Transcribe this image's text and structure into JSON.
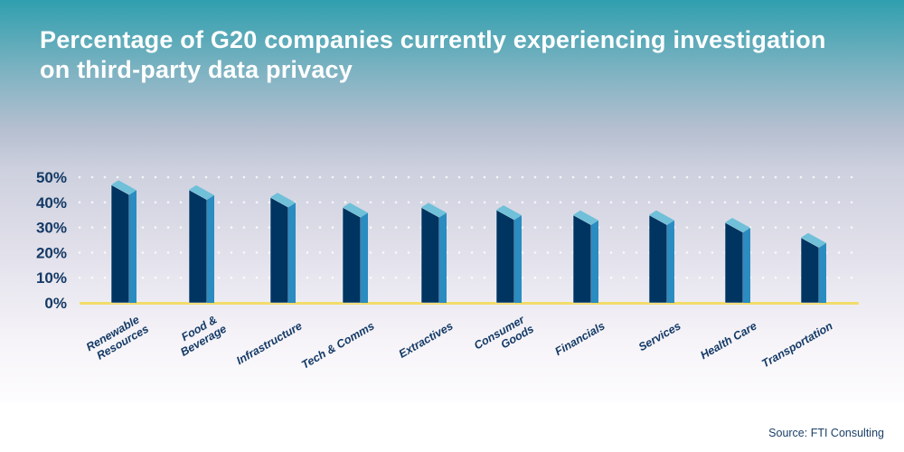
{
  "chart_data": {
    "type": "bar",
    "title": "Percentage of G20 companies currently experiencing investigation on third-party data privacy",
    "categories": [
      "Renewable Resources",
      "Food & Beverage",
      "Infrastructure",
      "Tech & Comms",
      "Extractives",
      "Consumer Goods",
      "Financials",
      "Services",
      "Health Care",
      "Transportation"
    ],
    "category_lines": [
      [
        "Renewable",
        "Resources"
      ],
      [
        "Food &",
        "Beverage"
      ],
      [
        "Infrastructure"
      ],
      [
        "Tech & Comms"
      ],
      [
        "Extractives"
      ],
      [
        "Consumer",
        "Goods"
      ],
      [
        "Financials"
      ],
      [
        "Services"
      ],
      [
        "Health Care"
      ],
      [
        "Transportation"
      ]
    ],
    "values": [
      47,
      45,
      42,
      38,
      38,
      37,
      35,
      35,
      32,
      26
    ],
    "ylim": [
      0,
      50
    ],
    "yticks": [
      "0%",
      "10%",
      "20%",
      "30%",
      "40%",
      "50%"
    ],
    "grid": true,
    "legend": "none",
    "colors": {
      "front": "#003461",
      "side": "#2a8cc0",
      "top": "#6fc0d8",
      "baseline": "#f2dc6a"
    }
  },
  "source": "Source: FTI Consulting"
}
